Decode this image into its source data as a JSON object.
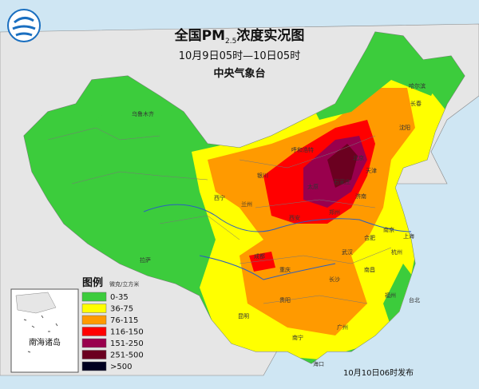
{
  "header": {
    "title": {
      "prefix": "全国PM",
      "subscript": "2.5",
      "suffix": "浓度实况图"
    },
    "period": "10月9日05时—10日05时",
    "agency": "中央气象台"
  },
  "legend": {
    "title": "图例",
    "unit": "微克/立方米",
    "items": [
      {
        "label": "0-35",
        "color": "#3ccc3c"
      },
      {
        "label": "36-75",
        "color": "#ffff00"
      },
      {
        "label": "76-115",
        "color": "#ff9a00"
      },
      {
        "label": "116-150",
        "color": "#ff0000"
      },
      {
        "label": "151-250",
        "color": "#99004d"
      },
      {
        "label": "251-500",
        "color": "#6b0020"
      },
      {
        "label": ">500",
        "color": "#000020"
      }
    ]
  },
  "inset": {
    "label": "南海诸岛"
  },
  "footer": {
    "issued": "10月10日06时发布"
  },
  "cities": [
    "乌鲁木齐",
    "拉萨",
    "西宁",
    "兰州",
    "银川",
    "呼和浩特",
    "北京",
    "天津",
    "石家庄",
    "太原",
    "济南",
    "郑州",
    "西安",
    "成都",
    "重庆",
    "贵阳",
    "昆明",
    "南宁",
    "海口",
    "广州",
    "长沙",
    "武汉",
    "南昌",
    "福州",
    "台北",
    "杭州",
    "上海",
    "南京",
    "合肥",
    "沈阳",
    "长春",
    "哈尔滨"
  ]
}
